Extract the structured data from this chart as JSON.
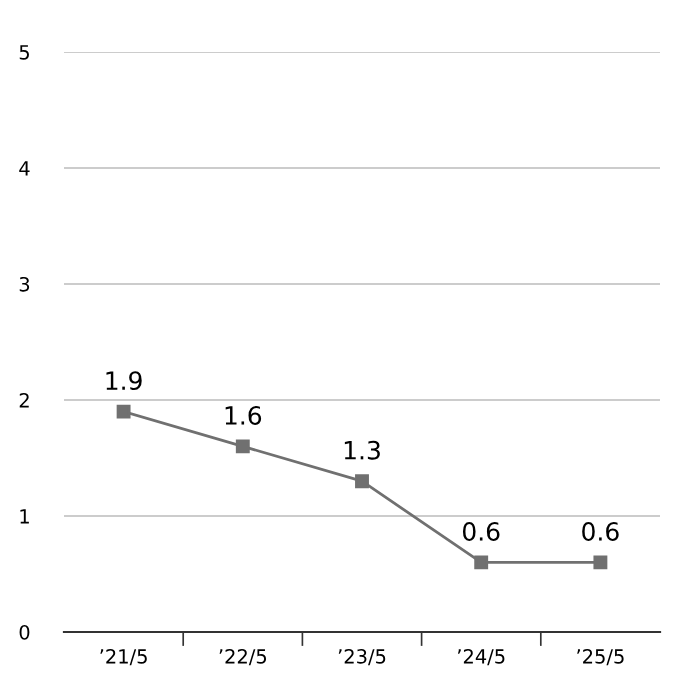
{
  "chart_data": {
    "type": "line",
    "categories": [
      "’21/5",
      "’22/5",
      "’23/5",
      "’24/5",
      "’25/5"
    ],
    "series": [
      {
        "color": "#707070",
        "values": [
          1.9,
          1.6,
          1.3,
          0.6,
          0.6
        ]
      }
    ],
    "ylim": [
      0,
      5
    ],
    "yticks": [
      0,
      1,
      2,
      3,
      4,
      5
    ],
    "grid": "y",
    "marker": "square",
    "line_style": "solid",
    "data_labels": true,
    "legend": false
  }
}
